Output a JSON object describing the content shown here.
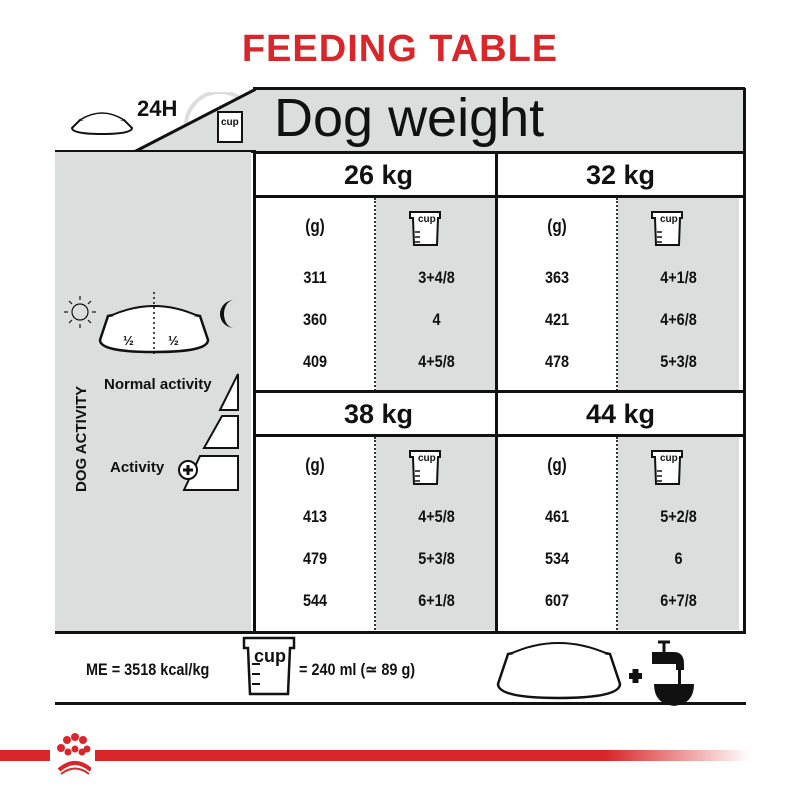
{
  "title": "FEEDING TABLE",
  "header": {
    "duration": "24H",
    "dog_weight": "Dog weight",
    "cup_label": "cup"
  },
  "activity": {
    "axis_label": "DOG ACTIVITY",
    "normal": "Normal activity",
    "high": "Activity",
    "half_left": "½",
    "half_right": "½"
  },
  "columns": {
    "grams": "(g)",
    "cups": "cup"
  },
  "blocks": [
    {
      "weight": "26 kg",
      "rows": [
        {
          "g": "311",
          "cup": "3+4/8"
        },
        {
          "g": "360",
          "cup": "4"
        },
        {
          "g": "409",
          "cup": "4+5/8"
        }
      ]
    },
    {
      "weight": "32 kg",
      "rows": [
        {
          "g": "363",
          "cup": "4+1/8"
        },
        {
          "g": "421",
          "cup": "4+6/8"
        },
        {
          "g": "478",
          "cup": "5+3/8"
        }
      ]
    },
    {
      "weight": "38 kg",
      "rows": [
        {
          "g": "413",
          "cup": "4+5/8"
        },
        {
          "g": "479",
          "cup": "5+3/8"
        },
        {
          "g": "544",
          "cup": "6+1/8"
        }
      ]
    },
    {
      "weight": "44 kg",
      "rows": [
        {
          "g": "461",
          "cup": "5+2/8"
        },
        {
          "g": "534",
          "cup": "6"
        },
        {
          "g": "607",
          "cup": "6+7/8"
        }
      ]
    }
  ],
  "footer": {
    "energy": "ME = 3518 kcal/kg",
    "cup_equiv": "= 240 ml (≃ 89 g)",
    "cup_label": "cup",
    "plus": "+"
  },
  "colors": {
    "brand_red": "#d9262a",
    "panel_gray": "#dcdddd"
  },
  "icons": [
    "bowl-icon",
    "clock-icon",
    "cup-icon",
    "sun-icon",
    "moon-icon",
    "plus-circle-icon",
    "water-tap-icon",
    "royal-canin-crown-logo"
  ]
}
